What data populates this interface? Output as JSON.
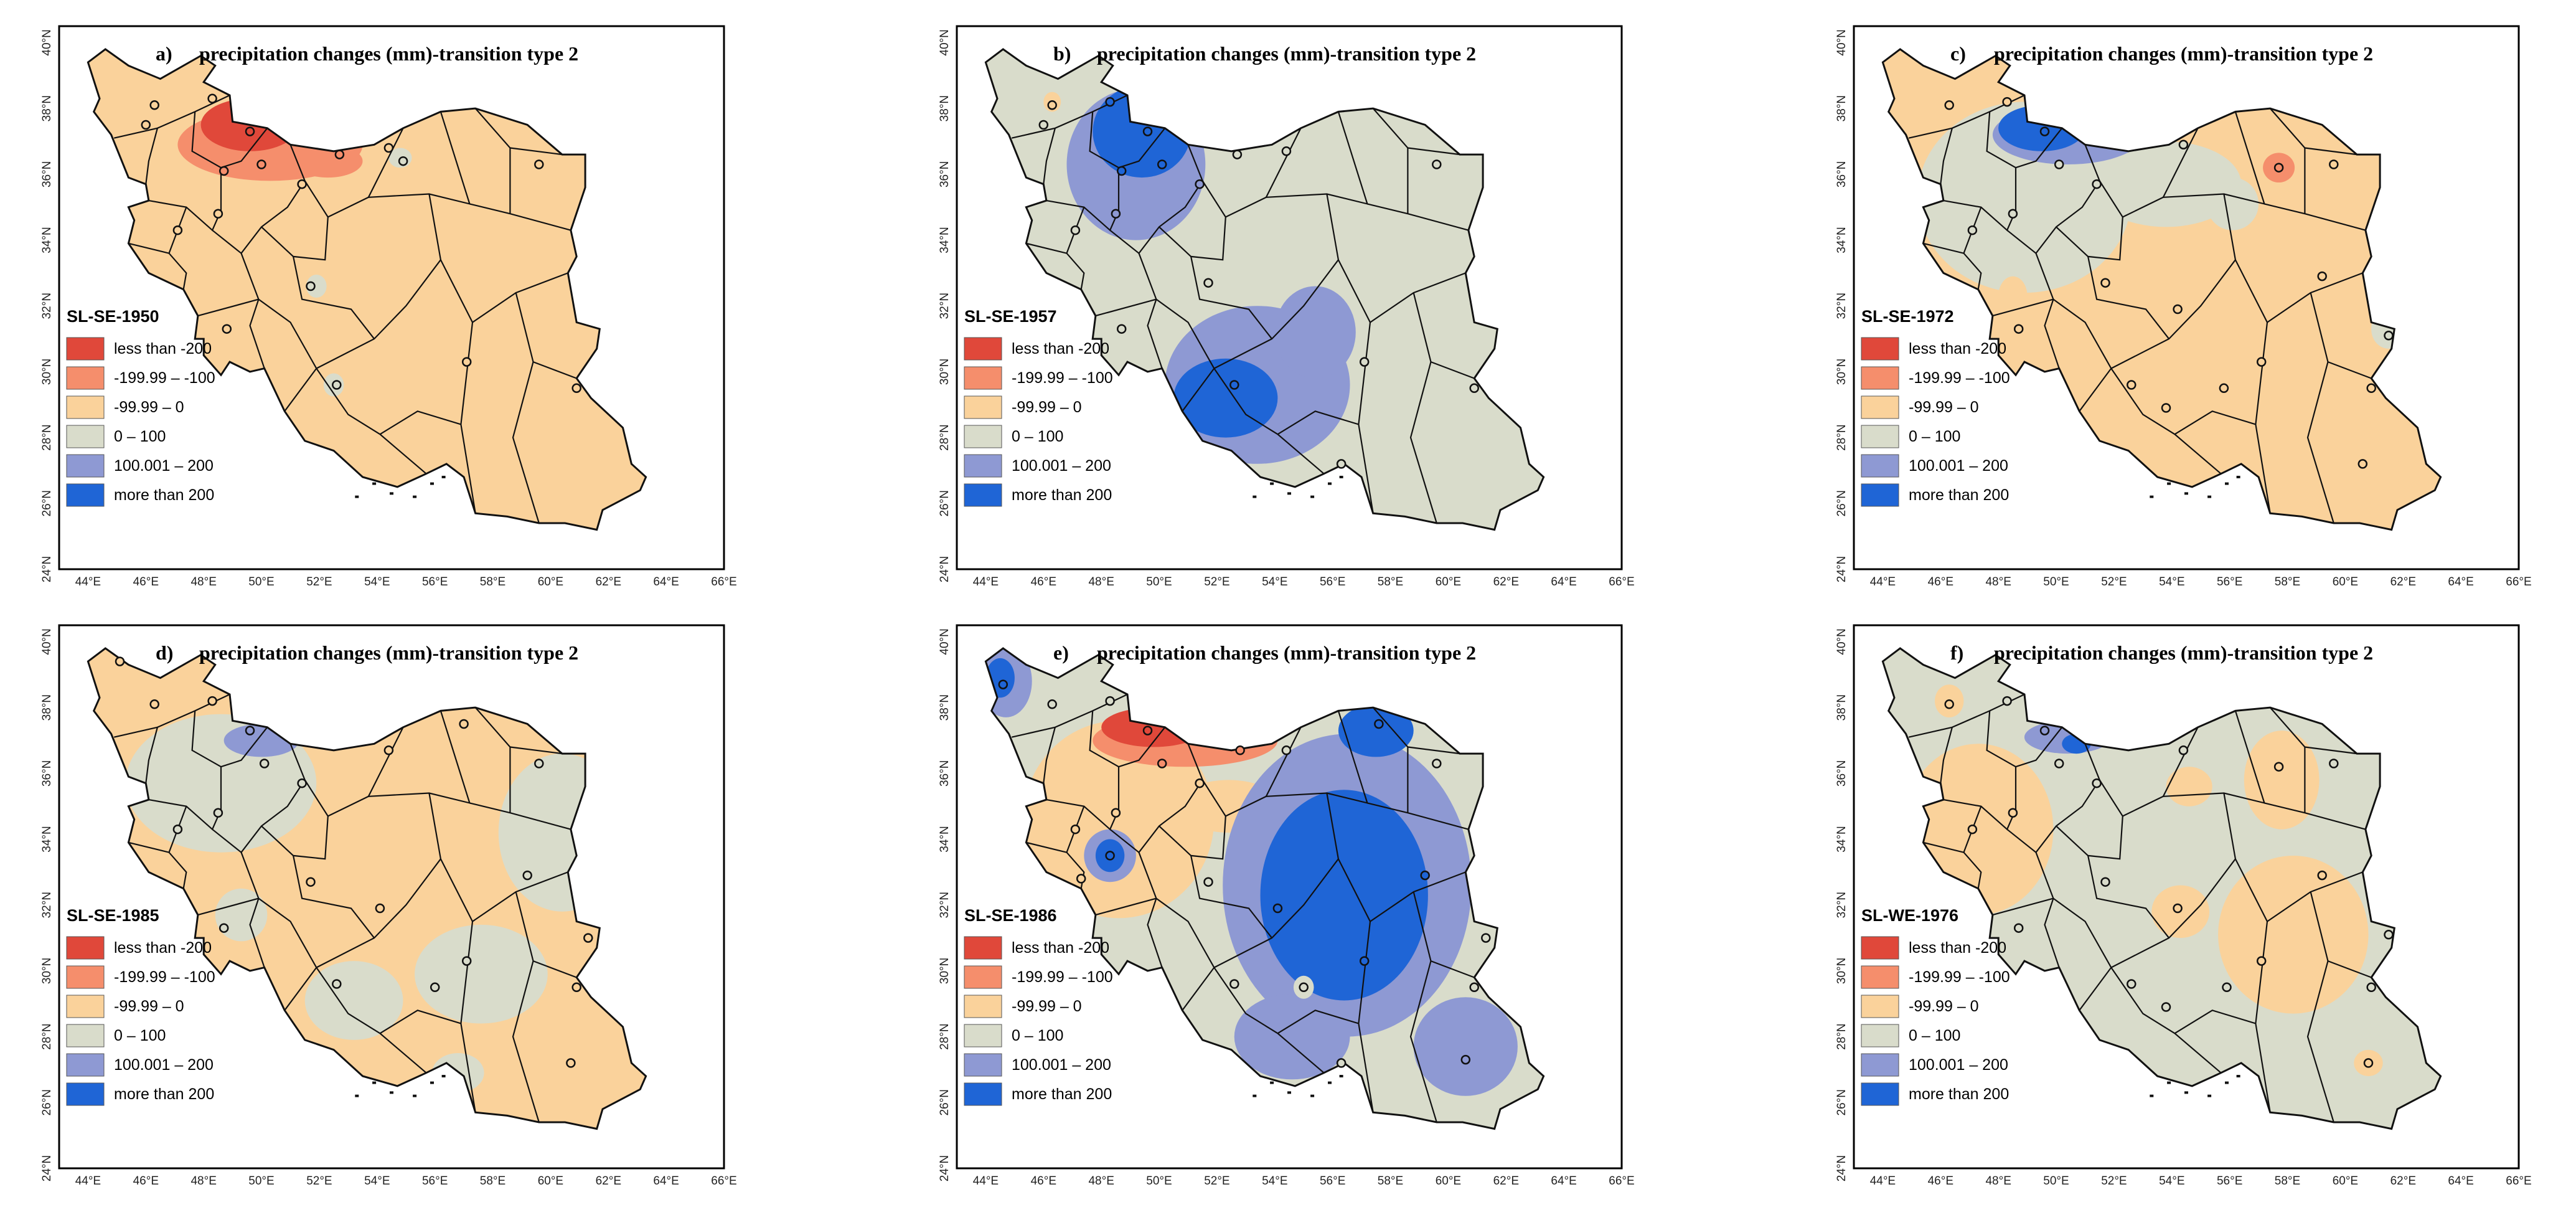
{
  "figure": {
    "panel_title_text": "precipitation changes (mm)-transition type 2",
    "lon_ticks": [
      "44°E",
      "46°E",
      "48°E",
      "50°E",
      "52°E",
      "54°E",
      "56°E",
      "58°E",
      "60°E",
      "62°E",
      "64°E",
      "66°E"
    ],
    "lat_ticks": [
      "24°N",
      "26°N",
      "28°N",
      "30°N",
      "32°N",
      "34°N",
      "36°N",
      "38°N",
      "40°N"
    ],
    "lon_range": [
      43,
      66
    ],
    "lat_range": [
      24,
      40.5
    ],
    "legend_items": [
      {
        "label": "less than -200",
        "color": "#e0483a"
      },
      {
        "label": "-199.99 – -100",
        "color": "#f58e6c"
      },
      {
        "label": "-99.99 – 0",
        "color": "#fad29b"
      },
      {
        "label": "0 – 100",
        "color": "#d9dccb"
      },
      {
        "label": "100.001 – 200",
        "color": "#8e99d3"
      },
      {
        "label": "more than 200",
        "color": "#1f65d6"
      }
    ]
  },
  "panels": [
    {
      "letter": "a)",
      "period": "SL-SE-1950",
      "base_class": "-99.99 – 0",
      "zones": [
        {
          "class": "-199.99 – -100",
          "lon": 50.3,
          "lat": 36.9,
          "rlon": 3.2,
          "rlat": 1.1
        },
        {
          "class": "-199.99 – -100",
          "lon": 52.3,
          "lat": 36.4,
          "rlon": 1.2,
          "rlat": 0.5
        },
        {
          "class": "less than -200",
          "lon": 49.6,
          "lat": 37.5,
          "rlon": 1.7,
          "rlat": 0.8
        },
        {
          "class": "0 – 100",
          "lon": 51.9,
          "lat": 32.6,
          "rlon": 0.35,
          "rlat": 0.35
        },
        {
          "class": "0 – 100",
          "lon": 52.5,
          "lat": 29.6,
          "rlon": 0.35,
          "rlat": 0.35
        },
        {
          "class": "0 – 100",
          "lon": 54.8,
          "lat": 36.5,
          "rlon": 0.4,
          "rlat": 0.3
        }
      ],
      "stations": [
        {
          "lon": 46.3,
          "lat": 38.1
        },
        {
          "lon": 48.3,
          "lat": 38.3
        },
        {
          "lon": 49.6,
          "lat": 37.3
        },
        {
          "lon": 51.4,
          "lat": 35.7
        },
        {
          "lon": 50.0,
          "lat": 36.3
        },
        {
          "lon": 48.5,
          "lat": 34.8
        },
        {
          "lon": 47.1,
          "lat": 34.3
        },
        {
          "lon": 48.8,
          "lat": 31.3
        },
        {
          "lon": 51.7,
          "lat": 32.6
        },
        {
          "lon": 52.6,
          "lat": 29.6
        },
        {
          "lon": 54.4,
          "lat": 36.8
        },
        {
          "lon": 59.6,
          "lat": 36.3
        },
        {
          "lon": 57.1,
          "lat": 30.3
        },
        {
          "lon": 60.9,
          "lat": 29.5
        },
        {
          "lon": 52.7,
          "lat": 36.6
        },
        {
          "lon": 54.9,
          "lat": 36.4
        },
        {
          "lon": 46.0,
          "lat": 37.5
        },
        {
          "lon": 48.7,
          "lat": 36.1
        }
      ]
    },
    {
      "letter": "b)",
      "period": "SL-SE-1957",
      "base_class": "0 – 100",
      "zones": [
        {
          "class": "100.001 – 200",
          "lon": 49.2,
          "lat": 36.3,
          "rlon": 2.4,
          "rlat": 2.3
        },
        {
          "class": "100.001 – 200",
          "lon": 53.4,
          "lat": 29.6,
          "rlon": 3.2,
          "rlat": 2.4
        },
        {
          "class": "100.001 – 200",
          "lon": 55.4,
          "lat": 31.2,
          "rlon": 1.4,
          "rlat": 1.4
        },
        {
          "class": "more than 200",
          "lon": 49.4,
          "lat": 37.3,
          "rlon": 1.7,
          "rlat": 1.4
        },
        {
          "class": "more than 200",
          "lon": 52.3,
          "lat": 29.2,
          "rlon": 1.8,
          "rlat": 1.2
        },
        {
          "class": "-99.99 – 0",
          "lon": 46.3,
          "lat": 38.2,
          "rlon": 0.3,
          "rlat": 0.3
        }
      ],
      "stations": [
        {
          "lon": 46.3,
          "lat": 38.1
        },
        {
          "lon": 48.3,
          "lat": 38.2
        },
        {
          "lon": 49.6,
          "lat": 37.3
        },
        {
          "lon": 51.4,
          "lat": 35.7
        },
        {
          "lon": 50.1,
          "lat": 36.3
        },
        {
          "lon": 48.5,
          "lat": 34.8
        },
        {
          "lon": 47.1,
          "lat": 34.3
        },
        {
          "lon": 48.7,
          "lat": 31.3
        },
        {
          "lon": 51.7,
          "lat": 32.7
        },
        {
          "lon": 52.6,
          "lat": 29.6
        },
        {
          "lon": 54.4,
          "lat": 36.7
        },
        {
          "lon": 59.6,
          "lat": 36.3
        },
        {
          "lon": 57.1,
          "lat": 30.3
        },
        {
          "lon": 60.9,
          "lat": 29.5
        },
        {
          "lon": 52.7,
          "lat": 36.6
        },
        {
          "lon": 46.0,
          "lat": 37.5
        },
        {
          "lon": 48.7,
          "lat": 36.1
        },
        {
          "lon": 56.3,
          "lat": 27.2
        }
      ]
    },
    {
      "letter": "c)",
      "period": "SL-SE-1972",
      "base_class": "-99.99 – 0",
      "zones": [
        {
          "class": "0 – 100",
          "lon": 48.9,
          "lat": 35.3,
          "rlon": 3.7,
          "rlat": 2.9
        },
        {
          "class": "0 – 100",
          "lon": 53.8,
          "lat": 35.7,
          "rlon": 2.6,
          "rlat": 1.3
        },
        {
          "class": "0 – 100",
          "lon": 56.1,
          "lat": 35.1,
          "rlon": 0.9,
          "rlat": 0.8
        },
        {
          "class": "0 – 100",
          "lon": 61.5,
          "lat": 31.3,
          "rlon": 0.6,
          "rlat": 0.6
        },
        {
          "class": "100.001 – 200",
          "lon": 50.4,
          "lat": 37.2,
          "rlon": 2.6,
          "rlat": 0.9
        },
        {
          "class": "more than 200",
          "lon": 49.5,
          "lat": 37.4,
          "rlon": 1.5,
          "rlat": 0.7
        },
        {
          "class": "-199.99 – -100",
          "lon": 57.7,
          "lat": 36.2,
          "rlon": 0.55,
          "rlat": 0.45
        },
        {
          "class": "-99.99 – 0",
          "lon": 48.5,
          "lat": 32.3,
          "rlon": 0.5,
          "rlat": 0.6
        }
      ],
      "stations": [
        {
          "lon": 46.3,
          "lat": 38.1
        },
        {
          "lon": 48.3,
          "lat": 38.2
        },
        {
          "lon": 49.6,
          "lat": 37.3
        },
        {
          "lon": 51.4,
          "lat": 35.7
        },
        {
          "lon": 50.1,
          "lat": 36.3
        },
        {
          "lon": 48.5,
          "lat": 34.8
        },
        {
          "lon": 47.1,
          "lat": 34.3
        },
        {
          "lon": 48.7,
          "lat": 31.3
        },
        {
          "lon": 51.7,
          "lat": 32.7
        },
        {
          "lon": 52.6,
          "lat": 29.6
        },
        {
          "lon": 54.4,
          "lat": 36.9
        },
        {
          "lon": 59.6,
          "lat": 36.3
        },
        {
          "lon": 57.1,
          "lat": 30.3
        },
        {
          "lon": 60.9,
          "lat": 29.5
        },
        {
          "lon": 57.7,
          "lat": 36.2
        },
        {
          "lon": 54.2,
          "lat": 31.9
        },
        {
          "lon": 59.2,
          "lat": 32.9
        },
        {
          "lon": 61.5,
          "lat": 31.1
        },
        {
          "lon": 60.6,
          "lat": 27.2
        },
        {
          "lon": 53.8,
          "lat": 28.9
        },
        {
          "lon": 55.8,
          "lat": 29.5
        }
      ]
    },
    {
      "letter": "d)",
      "period": "SL-SE-1985",
      "base_class": "-99.99 – 0",
      "zones": [
        {
          "class": "0 – 100",
          "lon": 48.6,
          "lat": 35.7,
          "rlon": 3.3,
          "rlat": 2.1
        },
        {
          "class": "0 – 100",
          "lon": 60.4,
          "lat": 34.2,
          "rlon": 2.2,
          "rlat": 2.4
        },
        {
          "class": "0 – 100",
          "lon": 57.6,
          "lat": 29.9,
          "rlon": 2.3,
          "rlat": 1.5
        },
        {
          "class": "0 – 100",
          "lon": 53.2,
          "lat": 29.1,
          "rlon": 1.7,
          "rlat": 1.2
        },
        {
          "class": "0 – 100",
          "lon": 49.3,
          "lat": 31.7,
          "rlon": 0.9,
          "rlat": 0.8
        },
        {
          "class": "0 – 100",
          "lon": 56.8,
          "lat": 26.9,
          "rlon": 0.9,
          "rlat": 0.6
        },
        {
          "class": "100.001 – 200",
          "lon": 50.0,
          "lat": 37.0,
          "rlon": 1.3,
          "rlat": 0.5
        }
      ],
      "stations": [
        {
          "lon": 46.3,
          "lat": 38.1
        },
        {
          "lon": 48.3,
          "lat": 38.2
        },
        {
          "lon": 49.6,
          "lat": 37.3
        },
        {
          "lon": 51.4,
          "lat": 35.7
        },
        {
          "lon": 50.1,
          "lat": 36.3
        },
        {
          "lon": 48.5,
          "lat": 34.8
        },
        {
          "lon": 47.1,
          "lat": 34.3
        },
        {
          "lon": 48.7,
          "lat": 31.3
        },
        {
          "lon": 51.7,
          "lat": 32.7
        },
        {
          "lon": 52.6,
          "lat": 29.6
        },
        {
          "lon": 54.4,
          "lat": 36.7
        },
        {
          "lon": 59.6,
          "lat": 36.3
        },
        {
          "lon": 57.1,
          "lat": 30.3
        },
        {
          "lon": 60.9,
          "lat": 29.5
        },
        {
          "lon": 59.2,
          "lat": 32.9
        },
        {
          "lon": 61.3,
          "lat": 31.0
        },
        {
          "lon": 54.1,
          "lat": 31.9
        },
        {
          "lon": 56.0,
          "lat": 29.5
        },
        {
          "lon": 60.7,
          "lat": 27.2
        },
        {
          "lon": 57.0,
          "lat": 37.5
        },
        {
          "lon": 45.1,
          "lat": 39.4
        }
      ]
    },
    {
      "letter": "e)",
      "period": "SL-SE-1986",
      "base_class": "0 – 100",
      "zones": [
        {
          "class": "-99.99 – 0",
          "lon": 48.6,
          "lat": 34.6,
          "rlon": 3.3,
          "rlat": 3.0
        },
        {
          "class": "-99.99 – 0",
          "lon": 52.4,
          "lat": 35.0,
          "rlon": 1.8,
          "rlat": 0.8
        },
        {
          "class": "100.001 – 200",
          "lon": 56.5,
          "lat": 32.6,
          "rlon": 4.3,
          "rlat": 4.6
        },
        {
          "class": "100.001 – 200",
          "lon": 60.6,
          "lat": 27.7,
          "rlon": 1.8,
          "rlat": 1.5
        },
        {
          "class": "100.001 – 200",
          "lon": 54.6,
          "lat": 28.0,
          "rlon": 2.0,
          "rlat": 1.3
        },
        {
          "class": "100.001 – 200",
          "lon": 44.7,
          "lat": 38.8,
          "rlon": 0.9,
          "rlat": 1.1
        },
        {
          "class": "100.001 – 200",
          "lon": 48.3,
          "lat": 33.5,
          "rlon": 0.9,
          "rlat": 0.8
        },
        {
          "class": "more than 200",
          "lon": 56.4,
          "lat": 32.3,
          "rlon": 2.9,
          "rlat": 3.2
        },
        {
          "class": "more than 200",
          "lon": 57.5,
          "lat": 37.3,
          "rlon": 1.3,
          "rlat": 0.8
        },
        {
          "class": "more than 200",
          "lon": 48.3,
          "lat": 33.5,
          "rlon": 0.5,
          "rlat": 0.5
        },
        {
          "class": "more than 200",
          "lon": 44.5,
          "lat": 38.9,
          "rlon": 0.5,
          "rlat": 0.6
        },
        {
          "class": "-199.99 – -100",
          "lon": 50.9,
          "lat": 37.0,
          "rlon": 3.2,
          "rlat": 0.8
        },
        {
          "class": "less than -200",
          "lon": 49.8,
          "lat": 37.4,
          "rlon": 1.8,
          "rlat": 0.6
        },
        {
          "class": "0 – 100",
          "lon": 55.0,
          "lat": 29.5,
          "rlon": 0.35,
          "rlat": 0.35
        }
      ],
      "stations": [
        {
          "lon": 46.3,
          "lat": 38.1
        },
        {
          "lon": 48.3,
          "lat": 38.2
        },
        {
          "lon": 49.6,
          "lat": 37.3
        },
        {
          "lon": 51.4,
          "lat": 35.7
        },
        {
          "lon": 50.1,
          "lat": 36.3
        },
        {
          "lon": 48.5,
          "lat": 34.8
        },
        {
          "lon": 47.1,
          "lat": 34.3
        },
        {
          "lon": 48.3,
          "lat": 33.5
        },
        {
          "lon": 51.7,
          "lat": 32.7
        },
        {
          "lon": 52.6,
          "lat": 29.6
        },
        {
          "lon": 54.4,
          "lat": 36.7
        },
        {
          "lon": 59.6,
          "lat": 36.3
        },
        {
          "lon": 57.1,
          "lat": 30.3
        },
        {
          "lon": 60.9,
          "lat": 29.5
        },
        {
          "lon": 54.1,
          "lat": 31.9
        },
        {
          "lon": 55.0,
          "lat": 29.5
        },
        {
          "lon": 59.2,
          "lat": 32.9
        },
        {
          "lon": 61.3,
          "lat": 31.0
        },
        {
          "lon": 60.6,
          "lat": 27.3
        },
        {
          "lon": 56.3,
          "lat": 27.2
        },
        {
          "lon": 57.6,
          "lat": 37.5
        },
        {
          "lon": 44.6,
          "lat": 38.7
        },
        {
          "lon": 47.3,
          "lat": 32.8
        },
        {
          "lon": 52.8,
          "lat": 36.7
        }
      ]
    },
    {
      "letter": "f)",
      "period": "SL-WE-1976",
      "base_class": "0 – 100",
      "zones": [
        {
          "class": "-99.99 – 0",
          "lon": 47.3,
          "lat": 34.3,
          "rlon": 2.6,
          "rlat": 2.6
        },
        {
          "class": "-99.99 – 0",
          "lon": 58.2,
          "lat": 31.1,
          "rlon": 2.6,
          "rlat": 2.4
        },
        {
          "class": "-99.99 – 0",
          "lon": 57.8,
          "lat": 35.8,
          "rlon": 1.3,
          "rlat": 1.5
        },
        {
          "class": "-99.99 – 0",
          "lon": 54.3,
          "lat": 31.8,
          "rlon": 1.0,
          "rlat": 0.8
        },
        {
          "class": "-99.99 – 0",
          "lon": 54.6,
          "lat": 35.6,
          "rlon": 0.8,
          "rlat": 0.6
        },
        {
          "class": "-99.99 – 0",
          "lon": 60.8,
          "lat": 27.2,
          "rlon": 0.5,
          "rlat": 0.4
        },
        {
          "class": "-99.99 – 0",
          "lon": 46.3,
          "lat": 38.2,
          "rlon": 0.5,
          "rlat": 0.5
        },
        {
          "class": "100.001 – 200",
          "lon": 50.4,
          "lat": 37.1,
          "rlon": 1.5,
          "rlat": 0.5
        },
        {
          "class": "more than 200",
          "lon": 50.7,
          "lat": 36.9,
          "rlon": 0.5,
          "rlat": 0.3
        }
      ],
      "stations": [
        {
          "lon": 46.3,
          "lat": 38.1
        },
        {
          "lon": 48.3,
          "lat": 38.2
        },
        {
          "lon": 49.6,
          "lat": 37.3
        },
        {
          "lon": 51.4,
          "lat": 35.7
        },
        {
          "lon": 50.1,
          "lat": 36.3
        },
        {
          "lon": 48.5,
          "lat": 34.8
        },
        {
          "lon": 47.1,
          "lat": 34.3
        },
        {
          "lon": 48.7,
          "lat": 31.3
        },
        {
          "lon": 51.7,
          "lat": 32.7
        },
        {
          "lon": 52.6,
          "lat": 29.6
        },
        {
          "lon": 54.4,
          "lat": 36.7
        },
        {
          "lon": 59.6,
          "lat": 36.3
        },
        {
          "lon": 57.1,
          "lat": 30.3
        },
        {
          "lon": 60.9,
          "lat": 29.5
        },
        {
          "lon": 57.7,
          "lat": 36.2
        },
        {
          "lon": 54.2,
          "lat": 31.9
        },
        {
          "lon": 59.2,
          "lat": 32.9
        },
        {
          "lon": 61.5,
          "lat": 31.1
        },
        {
          "lon": 60.8,
          "lat": 27.2
        },
        {
          "lon": 55.9,
          "lat": 29.5
        },
        {
          "lon": 53.8,
          "lat": 28.9
        }
      ]
    }
  ]
}
